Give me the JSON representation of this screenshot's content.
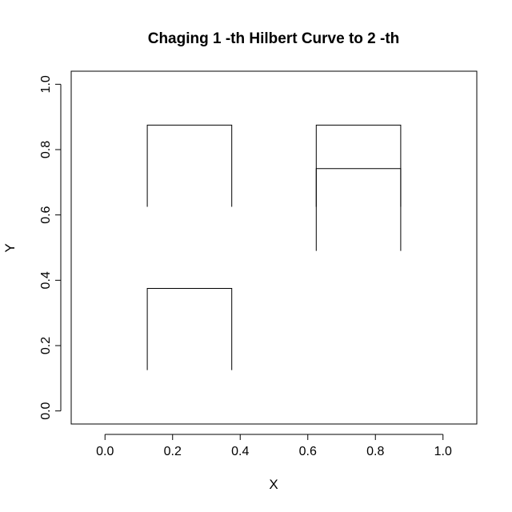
{
  "chart_data": {
    "type": "line",
    "title": "Chaging 1 -th Hilbert Curve to  2 -th",
    "xlabel": "X",
    "ylabel": "Y",
    "xlim": [
      -0.1,
      1.1
    ],
    "ylim": [
      -0.04,
      1.04
    ],
    "xticks": [
      0.0,
      0.2,
      0.4,
      0.6,
      0.8,
      1.0
    ],
    "yticks": [
      0.0,
      0.2,
      0.4,
      0.6,
      0.8,
      1.0
    ],
    "xtick_labels": [
      "0.0",
      "0.2",
      "0.4",
      "0.6",
      "0.8",
      "1.0"
    ],
    "ytick_labels": [
      "0.0",
      "0.2",
      "0.4",
      "0.6",
      "0.8",
      "1.0"
    ],
    "grid": false,
    "legend": false,
    "line_color": "#000000",
    "series": [
      {
        "x": [
          0.125,
          0.125,
          0.375,
          0.375
        ],
        "y": [
          0.125,
          0.375,
          0.375,
          0.125
        ]
      },
      {
        "x": [
          0.125,
          0.125,
          0.375,
          0.375
        ],
        "y": [
          0.625,
          0.875,
          0.875,
          0.625
        ]
      },
      {
        "x": [
          0.625,
          0.625,
          0.875,
          0.875
        ],
        "y": [
          0.625,
          0.875,
          0.875,
          0.625
        ]
      },
      {
        "x": [
          0.625,
          0.625,
          0.875,
          0.875
        ],
        "y": [
          0.49,
          0.742,
          0.742,
          0.49
        ]
      }
    ]
  }
}
